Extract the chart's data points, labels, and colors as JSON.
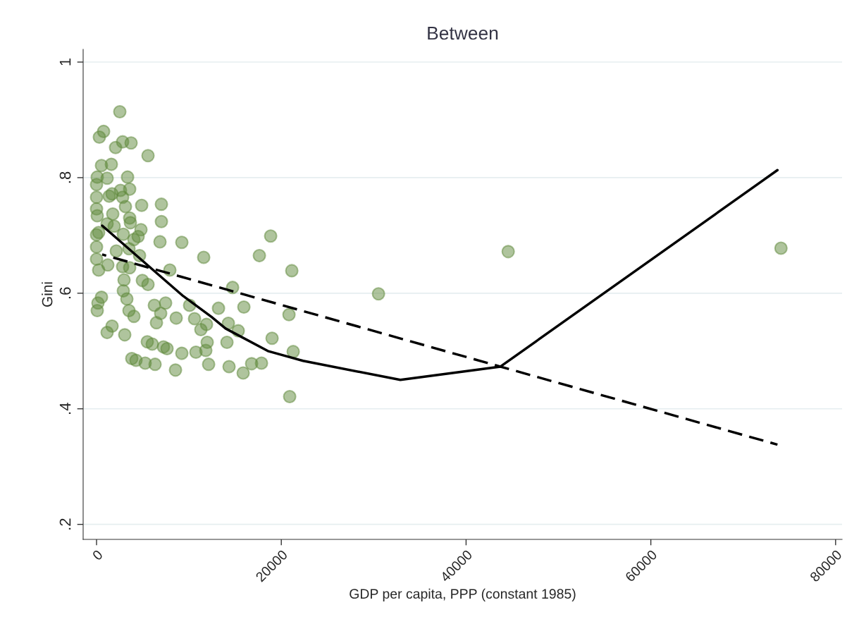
{
  "chart_data": {
    "type": "scatter",
    "title": "Between",
    "xlabel": "GDP per capita, PPP (constant 1985)",
    "ylabel": "Gini",
    "xlim": [
      -1450,
      80700
    ],
    "xticks": [
      0,
      20000,
      40000,
      60000,
      80000
    ],
    "ylim": [
      0.174,
      1.022
    ],
    "yticks": [
      {
        "value": 0.2,
        "label": ".2"
      },
      {
        "value": 0.4,
        "label": ".4"
      },
      {
        "value": 0.6,
        "label": ".6"
      },
      {
        "value": 0.8,
        "label": ".8"
      },
      1
    ],
    "grid": "y",
    "legend": false,
    "series": [
      {
        "marker": "circle",
        "color": "#5f8a3c",
        "x": [
          2518,
          763,
          305,
          2823,
          3739,
          2060,
          5570,
          534,
          1602,
          76,
          1144,
          3357,
          0,
          1679,
          2594,
          3586,
          1373,
          0,
          2823,
          3129,
          4883,
          7020,
          0,
          1755,
          76,
          3586,
          3663,
          7020,
          1144,
          1908,
          4807,
          229,
          2900,
          4502,
          0,
          4044,
          6867,
          9232,
          18846,
          0,
          2136,
          3510,
          4654,
          11598,
          17625,
          44559,
          74087,
          0,
          1221,
          2823,
          3586,
          229,
          7935,
          21135,
          4960,
          2976,
          5570,
          2900,
          14726,
          30520,
          534,
          153,
          3281,
          6257,
          7477,
          10072,
          13200,
          15947,
          76,
          3510,
          6943,
          4044,
          8622,
          10606,
          20830,
          6485,
          11903,
          1679,
          14268,
          15336,
          11292,
          1144,
          3052,
          5494,
          11979,
          14116,
          6028,
          18999,
          7248,
          7630,
          9232,
          10759,
          11827,
          21287,
          3815,
          4273,
          5265,
          6333,
          12132,
          14344,
          16786,
          17854,
          8546,
          15870,
          20906
        ],
        "values": [
          0.914,
          0.88,
          0.87,
          0.862,
          0.86,
          0.852,
          0.838,
          0.821,
          0.823,
          0.801,
          0.799,
          0.801,
          0.788,
          0.772,
          0.778,
          0.78,
          0.768,
          0.766,
          0.766,
          0.75,
          0.752,
          0.754,
          0.746,
          0.737,
          0.734,
          0.73,
          0.722,
          0.724,
          0.72,
          0.716,
          0.71,
          0.705,
          0.702,
          0.698,
          0.701,
          0.693,
          0.689,
          0.688,
          0.699,
          0.68,
          0.673,
          0.677,
          0.665,
          0.662,
          0.665,
          0.672,
          0.678,
          0.659,
          0.649,
          0.646,
          0.644,
          0.64,
          0.64,
          0.639,
          0.622,
          0.623,
          0.615,
          0.604,
          0.61,
          0.599,
          0.593,
          0.583,
          0.59,
          0.579,
          0.583,
          0.579,
          0.574,
          0.576,
          0.57,
          0.57,
          0.565,
          0.56,
          0.557,
          0.556,
          0.563,
          0.549,
          0.546,
          0.543,
          0.548,
          0.535,
          0.537,
          0.532,
          0.528,
          0.516,
          0.515,
          0.515,
          0.512,
          0.522,
          0.507,
          0.504,
          0.496,
          0.498,
          0.501,
          0.499,
          0.487,
          0.484,
          0.479,
          0.477,
          0.477,
          0.473,
          0.478,
          0.479,
          0.467,
          0.462,
          0.421
        ]
      },
      {
        "type": "line",
        "color": "#000000",
        "line_style": "solid",
        "x": [
          610,
          5341,
          9385,
          12437,
          13963,
          18541,
          22356,
          32885,
          43720,
          73706
        ],
        "values": [
          0.717,
          0.651,
          0.595,
          0.559,
          0.539,
          0.5,
          0.483,
          0.45,
          0.473,
          0.813
        ]
      },
      {
        "type": "line",
        "color": "#000000",
        "line_style": "dashed",
        "x": [
          610,
          73706
        ],
        "values": [
          0.667,
          0.338
        ]
      }
    ]
  }
}
